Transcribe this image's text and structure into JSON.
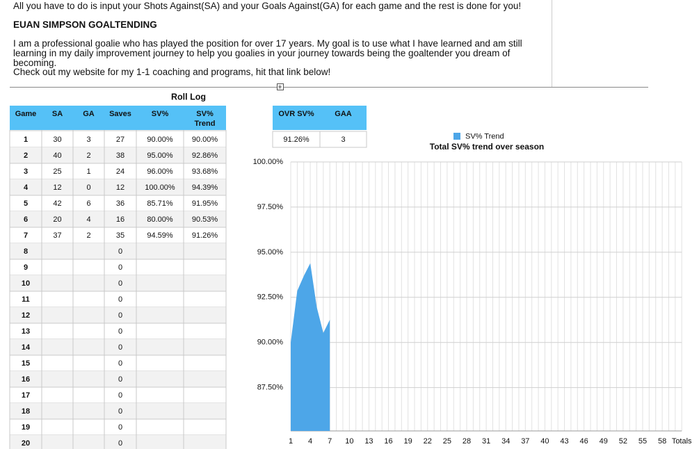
{
  "intro": {
    "line1": "All you have to do is input your Shots Against(SA) and your Goals Against(GA) for each game and the rest is done for you!",
    "heading": "EUAN SIMPSON GOALTENDING",
    "about": "I am a professional goalie who has played the position for over 17 years. My goal is to use what I have learned and am still learning in my daily improvement journey to help you goalies in your journey towards being the goaltender you dream of becoming.",
    "cta": "Check out my website for my 1-1 coaching and programs, hit that link below!"
  },
  "table": {
    "title": "Roll Log",
    "headers": [
      "Game",
      "SA",
      "GA",
      "Saves",
      "SV%",
      "SV% Trend"
    ],
    "rows": [
      [
        1,
        30,
        3,
        27,
        "90.00%",
        "90.00%"
      ],
      [
        2,
        40,
        2,
        38,
        "95.00%",
        "92.86%"
      ],
      [
        3,
        25,
        1,
        24,
        "96.00%",
        "93.68%"
      ],
      [
        4,
        12,
        0,
        12,
        "100.00%",
        "94.39%"
      ],
      [
        5,
        42,
        6,
        36,
        "85.71%",
        "91.95%"
      ],
      [
        6,
        20,
        4,
        16,
        "80.00%",
        "90.53%"
      ],
      [
        7,
        37,
        2,
        35,
        "94.59%",
        "91.26%"
      ],
      [
        8,
        null,
        null,
        0,
        null,
        null
      ],
      [
        9,
        null,
        null,
        0,
        null,
        null
      ],
      [
        10,
        null,
        null,
        0,
        null,
        null
      ],
      [
        11,
        null,
        null,
        0,
        null,
        null
      ],
      [
        12,
        null,
        null,
        0,
        null,
        null
      ],
      [
        13,
        null,
        null,
        0,
        null,
        null
      ],
      [
        14,
        null,
        null,
        0,
        null,
        null
      ],
      [
        15,
        null,
        null,
        0,
        null,
        null
      ],
      [
        16,
        null,
        null,
        0,
        null,
        null
      ],
      [
        17,
        null,
        null,
        0,
        null,
        null
      ],
      [
        18,
        null,
        null,
        0,
        null,
        null
      ],
      [
        19,
        null,
        null,
        0,
        null,
        null
      ],
      [
        20,
        null,
        null,
        0,
        null,
        null
      ]
    ]
  },
  "summary": {
    "headers": [
      "OVR SV%",
      "GAA"
    ],
    "values": [
      "91.26%",
      3
    ]
  },
  "chart_data": {
    "type": "area",
    "title": "Total SV% trend over season",
    "categories": [
      "1",
      null,
      null,
      "4",
      null,
      null,
      "7",
      null,
      null,
      "10",
      null,
      null,
      "13",
      null,
      null,
      "16",
      null,
      null,
      "19",
      null,
      null,
      "22",
      null,
      null,
      "25",
      null,
      null,
      "28",
      null,
      null,
      "31",
      null,
      null,
      "34",
      null,
      null,
      "37",
      null,
      null,
      "40",
      null,
      null,
      "43",
      null,
      null,
      "46",
      null,
      null,
      "49",
      null,
      null,
      "52",
      null,
      null,
      "55",
      null,
      null,
      "58",
      null,
      null,
      "Totals"
    ],
    "series": [
      {
        "name": "SV% Trend",
        "color": "#4da6e8",
        "values": [
          90.0,
          92.86,
          93.68,
          94.39,
          91.95,
          90.53,
          91.26,
          null,
          null,
          null,
          null,
          null,
          null,
          null,
          null,
          null,
          null,
          null,
          null,
          null,
          null,
          null,
          null,
          null,
          null,
          null,
          null,
          null,
          null,
          null,
          null,
          null,
          null,
          null,
          null,
          null,
          null,
          null,
          null,
          null,
          null,
          null,
          null,
          null,
          null,
          null,
          null,
          null,
          null,
          null,
          null,
          null,
          null,
          null,
          null,
          null,
          null,
          null,
          null,
          null,
          null
        ]
      }
    ],
    "ylim": [
      85.1,
      100
    ],
    "yticks": [
      {
        "value": 100,
        "label": "100.00%"
      },
      {
        "value": 97.5,
        "label": "97.50%"
      },
      {
        "value": 95,
        "label": "95.00%"
      },
      {
        "value": 92.5,
        "label": "92.50%"
      },
      {
        "value": 90,
        "label": "90.00%"
      },
      {
        "value": 87.5,
        "label": "87.50%"
      }
    ],
    "grid": true,
    "legend": "top"
  }
}
